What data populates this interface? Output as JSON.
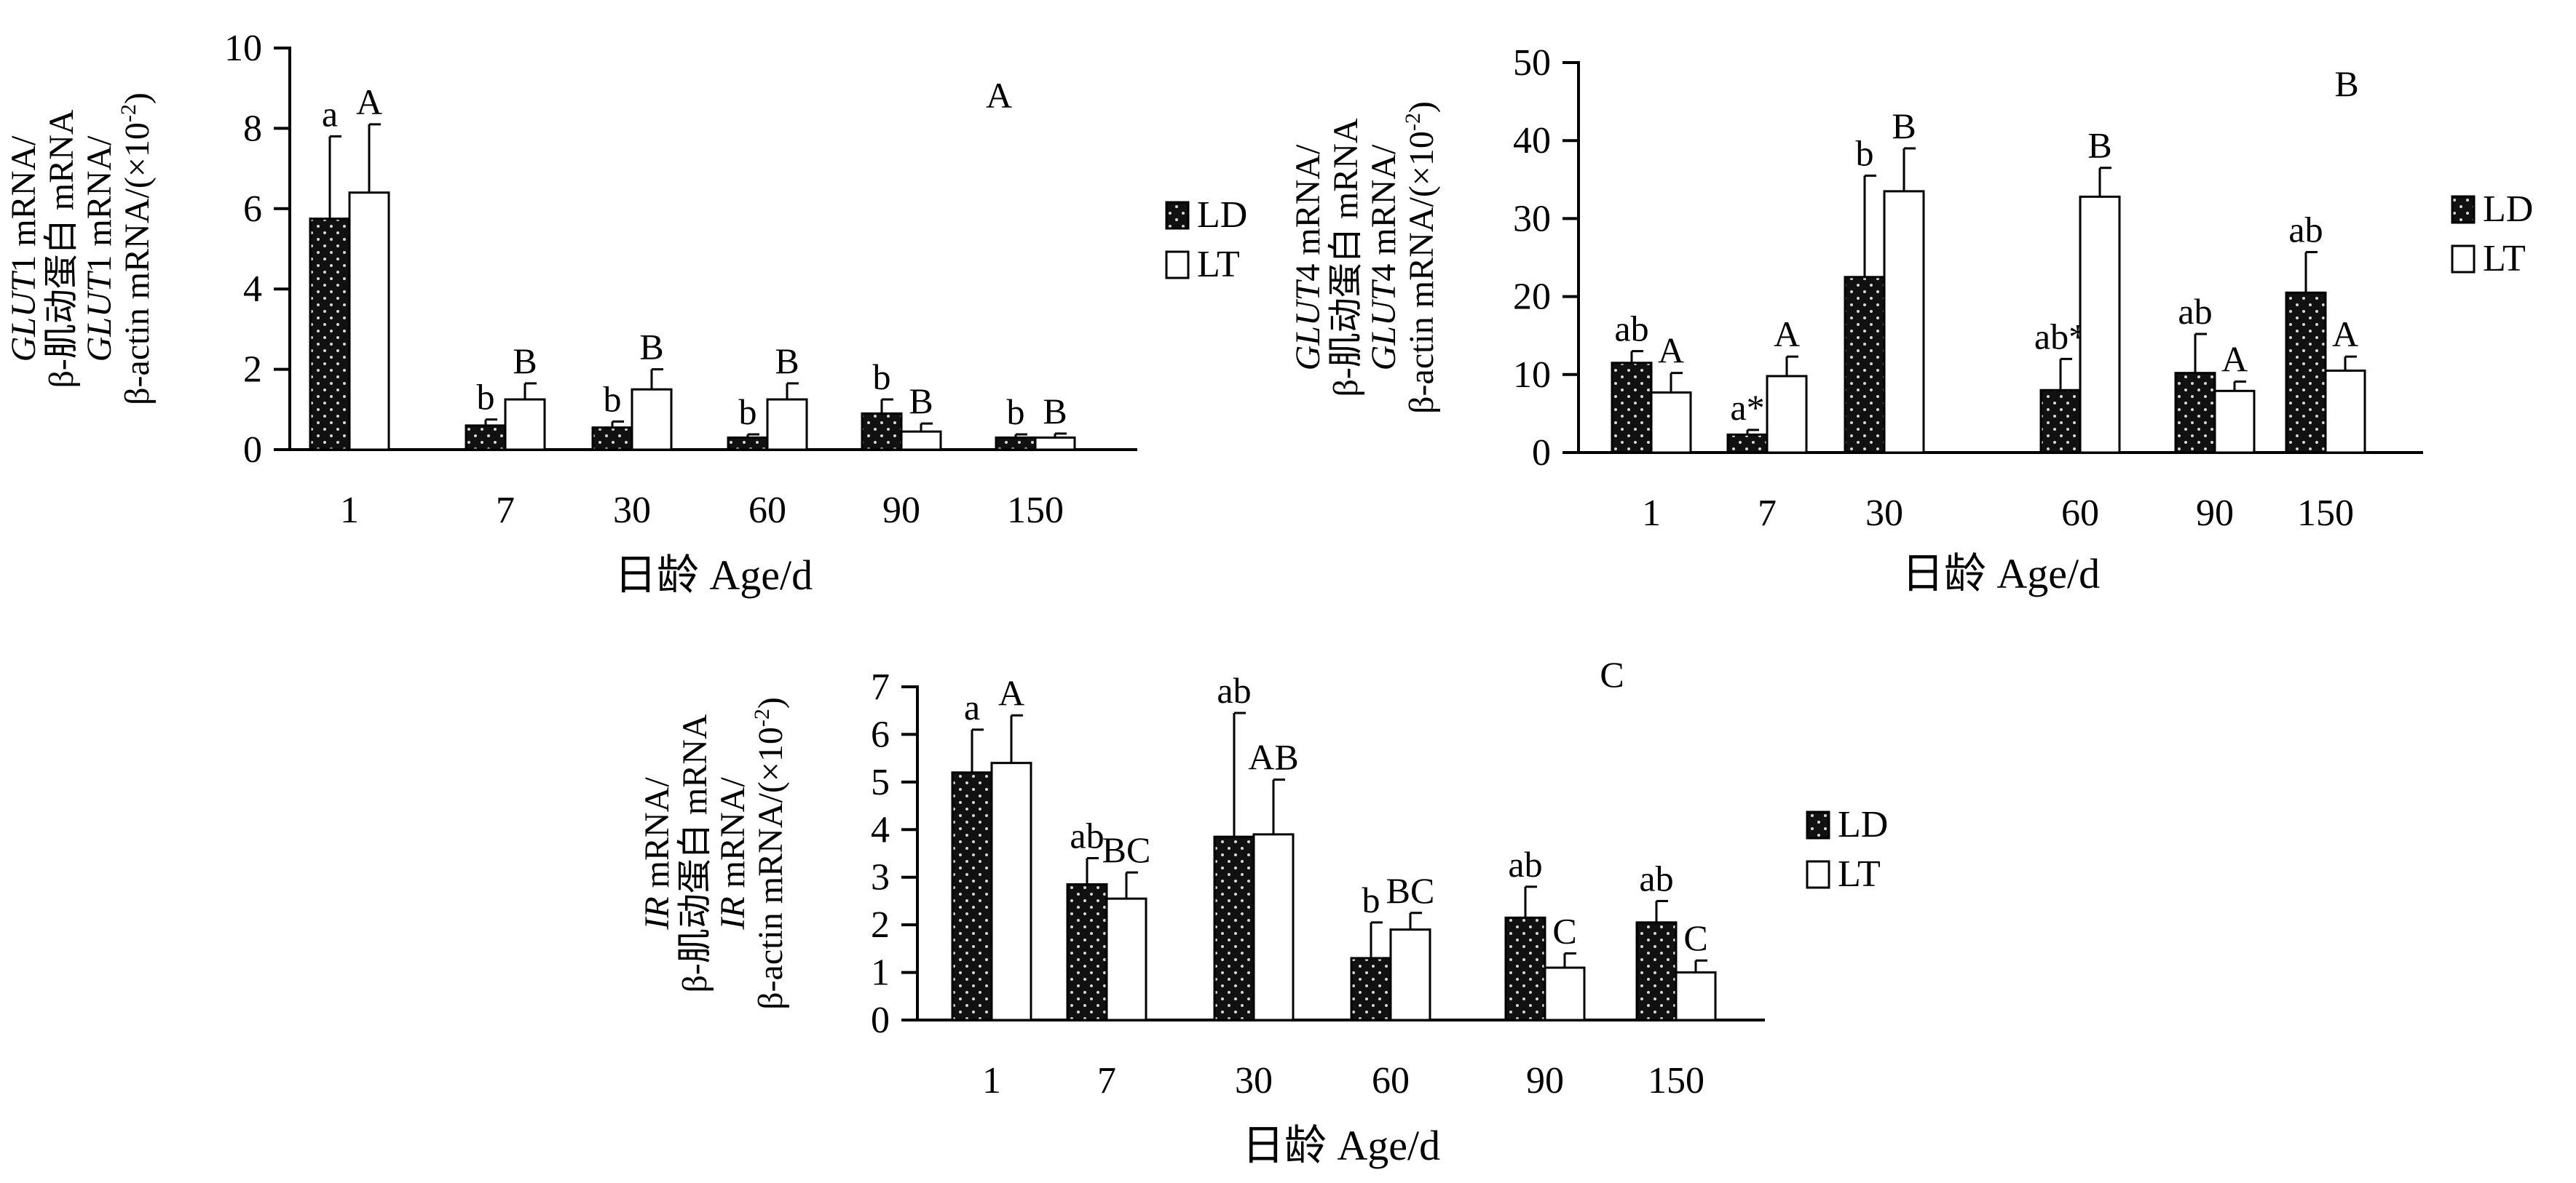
{
  "legend": {
    "ld_label": "LD",
    "lt_label": "LT"
  },
  "colors": {
    "ld_fill": "#111111",
    "ld_dot": "#d8d8d8",
    "lt_fill": "#ffffff",
    "axis": "#000000"
  },
  "chart_data": [
    {
      "type": "bar",
      "panel_label": "A",
      "categories": [
        "1",
        "7",
        "30",
        "60",
        "90",
        "150"
      ],
      "series": [
        {
          "name": "LD",
          "values": [
            5.75,
            0.6,
            0.55,
            0.3,
            0.9,
            0.3
          ],
          "errors": [
            2.05,
            0.15,
            0.15,
            0.08,
            0.35,
            0.08
          ]
        },
        {
          "name": "LT",
          "values": [
            6.4,
            1.25,
            1.5,
            1.25,
            0.45,
            0.3
          ],
          "errors": [
            1.7,
            0.4,
            0.5,
            0.4,
            0.2,
            0.1
          ]
        }
      ],
      "ld_letters": [
        "a",
        "b",
        "b",
        "b",
        "b",
        "b"
      ],
      "lt_letters": [
        "A",
        "B",
        "B",
        "B",
        "B",
        "B"
      ],
      "ylim": [
        0,
        10
      ],
      "yticks": [
        "0",
        "2",
        "4",
        "6",
        "8",
        "10"
      ],
      "xlabel": "日龄  Age/d",
      "ylabel": {
        "line1": {
          "gene": "GLUT",
          "rest": "1 mRNA/"
        },
        "line2": "β-肌动蛋白  mRNA",
        "line3": {
          "gene": "GLUT",
          "rest": "1 mRNA/"
        },
        "line4": "β-actin mRNA/(×10",
        "sup": "-2",
        "end": ")"
      }
    },
    {
      "type": "bar",
      "panel_label": "B",
      "categories": [
        "1",
        "7",
        "30",
        "60",
        "90",
        "150"
      ],
      "series": [
        {
          "name": "LD",
          "values": [
            11.5,
            2.3,
            22.5,
            8.0,
            10.2,
            20.5
          ],
          "errors": [
            1.5,
            0.6,
            13.0,
            4.0,
            5.0,
            5.2
          ]
        },
        {
          "name": "LT",
          "values": [
            7.7,
            9.8,
            33.5,
            32.8,
            7.9,
            10.5
          ],
          "errors": [
            2.5,
            2.5,
            5.5,
            3.7,
            1.2,
            1.8
          ]
        }
      ],
      "ld_letters": [
        "ab",
        "a*",
        "b",
        "ab*",
        "ab",
        "ab"
      ],
      "lt_letters": [
        "A",
        "A",
        "B",
        "B",
        "A",
        "A"
      ],
      "ylim": [
        0,
        50
      ],
      "yticks": [
        "0",
        "10",
        "20",
        "30",
        "40",
        "50"
      ],
      "xlabel": "日龄  Age/d",
      "ylabel": {
        "line1": {
          "gene": "GLUT",
          "rest": "4 mRNA/"
        },
        "line2": "β-肌动蛋白  mRNA",
        "line3": {
          "gene": "GLUT",
          "rest": "4 mRNA/"
        },
        "line4": "β-actin mRNA/(×10",
        "sup": "-2",
        "end": ")"
      }
    },
    {
      "type": "bar",
      "panel_label": "C",
      "categories": [
        "1",
        "7",
        "30",
        "60",
        "90",
        "150"
      ],
      "series": [
        {
          "name": "LD",
          "values": [
            5.2,
            2.85,
            3.85,
            1.3,
            2.15,
            2.05
          ],
          "errors": [
            0.9,
            0.55,
            2.6,
            0.75,
            0.65,
            0.45
          ]
        },
        {
          "name": "LT",
          "values": [
            5.4,
            2.55,
            3.9,
            1.9,
            1.1,
            1.0
          ],
          "errors": [
            1.0,
            0.55,
            1.15,
            0.35,
            0.3,
            0.25
          ]
        }
      ],
      "ld_letters": [
        "a",
        "ab",
        "ab",
        "b",
        "ab",
        "ab"
      ],
      "lt_letters": [
        "A",
        "BC",
        "AB",
        "BC",
        "C",
        "C"
      ],
      "ylim": [
        0,
        7
      ],
      "yticks": [
        "0",
        "1",
        "2",
        "3",
        "4",
        "5",
        "6",
        "7"
      ],
      "xlabel": "日龄  Age/d",
      "ylabel": {
        "line1": {
          "gene": "IR",
          "rest": " mRNA/"
        },
        "line2": "β-肌动蛋白  mRNA",
        "line3": {
          "gene": "IR",
          "rest": " mRNA/"
        },
        "line4": "β-actin mRNA/(×10",
        "sup": "-2",
        "end": ")"
      }
    }
  ]
}
